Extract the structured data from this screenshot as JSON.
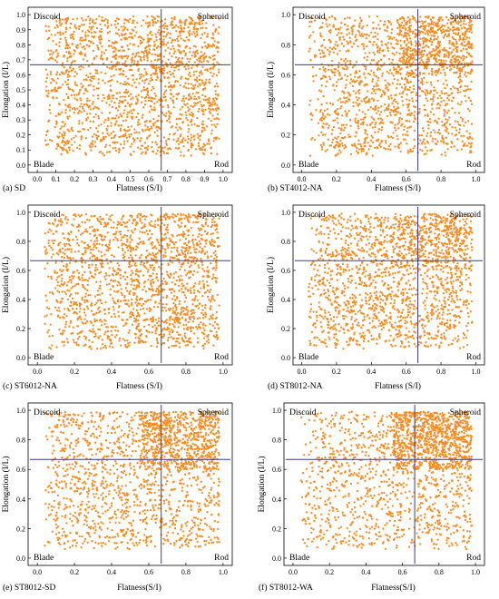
{
  "figure": {
    "marker_color": "#F98B1E",
    "line_color": "#3A3A8C",
    "panels": [
      {
        "caption_letter": "(a)",
        "caption_name": "SD",
        "chart_data": {
          "type": "scatter",
          "xlabel": "Flatness (S/I)",
          "ylabel": "Elongation (I/L)",
          "xlim": [
            0.0,
            1.0
          ],
          "ylim": [
            0.0,
            1.0
          ],
          "xticks": [
            "0.0",
            "0.1",
            "0.2",
            "0.3",
            "0.4",
            "0.5",
            "0.6",
            "0.7",
            "0.8",
            "0.9",
            "1.0"
          ],
          "yticks": [
            "0.0",
            "0.1",
            "0.2",
            "0.3",
            "0.4",
            "0.5",
            "0.6",
            "0.7",
            "0.8",
            "0.9",
            "1.0"
          ],
          "divider_x": 0.667,
          "divider_y": 0.667,
          "quadrant_labels": {
            "top_left": "Discoid",
            "top_right": "Spheroid",
            "bottom_left": "Blade",
            "bottom_right": "Rod"
          },
          "point_density": {
            "left": 0.3,
            "right": 0.3,
            "top_right_boost": 0.05,
            "bottom_right_boost": 0.0
          }
        }
      },
      {
        "caption_letter": "(b)",
        "caption_name": "ST4012-NA",
        "chart_data": {
          "type": "scatter",
          "xlabel": "Flatness (S/I)",
          "ylabel": "Elongation (I/L)",
          "xlim": [
            0.0,
            1.0
          ],
          "ylim": [
            0.0,
            1.0
          ],
          "xticks": [
            "0.0",
            "0.2",
            "0.4",
            "0.6",
            "0.8",
            "1.0"
          ],
          "yticks": [
            "0.0",
            "0.2",
            "0.4",
            "0.6",
            "0.8",
            "1.0"
          ],
          "divider_x": 0.667,
          "divider_y": 0.667,
          "quadrant_labels": {
            "top_left": "Discoid",
            "top_right": "Spheroid",
            "bottom_left": "Blade",
            "bottom_right": "Rod"
          },
          "point_density": {
            "left": 0.15,
            "right": 0.3,
            "top_right_boost": 0.2,
            "bottom_right_boost": 0.0
          }
        }
      },
      {
        "caption_letter": "(c)",
        "caption_name": "ST6012-NA",
        "chart_data": {
          "type": "scatter",
          "xlabel": "Flatness (S/I)",
          "ylabel": "Elongation (I/L)",
          "xlim": [
            0.0,
            1.0
          ],
          "ylim": [
            0.0,
            1.0
          ],
          "xticks": [
            "0.0",
            "0.2",
            "0.4",
            "0.6",
            "0.8",
            "1.0"
          ],
          "yticks": [
            "0.0",
            "0.2",
            "0.4",
            "0.6",
            "0.8",
            "1.0"
          ],
          "divider_x": 0.667,
          "divider_y": 0.667,
          "quadrant_labels": {
            "top_left": "Discoid",
            "top_right": "Spheroid",
            "bottom_left": "Blade",
            "bottom_right": "Rod"
          },
          "point_density": {
            "left": 0.25,
            "right": 0.28,
            "top_right_boost": 0.05,
            "bottom_right_boost": 0.05
          }
        }
      },
      {
        "caption_letter": "(d)",
        "caption_name": "ST8012-NA",
        "chart_data": {
          "type": "scatter",
          "xlabel": "Flatness (S/I)",
          "ylabel": "Elongation (I/L)",
          "xlim": [
            0.0,
            1.0
          ],
          "ylim": [
            0.0,
            1.0
          ],
          "xticks": [
            "0.0",
            "0.2",
            "0.4",
            "0.6",
            "0.8",
            "1.0"
          ],
          "yticks": [
            "0.0",
            "0.2",
            "0.4",
            "0.6",
            "0.8",
            "1.0"
          ],
          "divider_x": 0.667,
          "divider_y": 0.667,
          "quadrant_labels": {
            "top_left": "Discoid",
            "top_right": "Spheroid",
            "bottom_left": "Blade",
            "bottom_right": "Rod"
          },
          "point_density": {
            "left": 0.15,
            "right": 0.28,
            "top_right_boost": 0.12,
            "bottom_right_boost": 0.0
          }
        }
      },
      {
        "caption_letter": "(e)",
        "caption_name": "ST8012-SD",
        "chart_data": {
          "type": "scatter",
          "xlabel": "Flatness(S/I)",
          "ylabel": "Elongation (I/L)",
          "xlim": [
            0.0,
            1.0
          ],
          "ylim": [
            0.0,
            1.0
          ],
          "xticks": [
            "0.0",
            "0.2",
            "0.4",
            "0.6",
            "0.8",
            "1.0"
          ],
          "yticks": [
            "0.0",
            "0.2",
            "0.4",
            "0.6",
            "0.8",
            "1.0"
          ],
          "divider_x": 0.667,
          "divider_y": 0.667,
          "quadrant_labels": {
            "top_left": "Discoid",
            "top_right": "Spheroid",
            "bottom_left": "Blade",
            "bottom_right": "Rod"
          },
          "point_density": {
            "left": 0.15,
            "right": 0.3,
            "top_right_boost": 0.3,
            "bottom_right_boost": 0.0
          }
        }
      },
      {
        "caption_letter": "(f)",
        "caption_name": "ST8012-WA",
        "chart_data": {
          "type": "scatter",
          "xlabel": "Flatness(S/I)",
          "ylabel": "Elongation (I/L)",
          "xlim": [
            0.0,
            1.0
          ],
          "ylim": [
            0.0,
            1.0
          ],
          "xticks": [
            "0.0",
            "0.2",
            "0.4",
            "0.6",
            "0.8",
            "1.0"
          ],
          "yticks": [
            "0.0",
            "0.2",
            "0.4",
            "0.6",
            "0.8",
            "1.0"
          ],
          "divider_x": 0.667,
          "divider_y": 0.667,
          "quadrant_labels": {
            "top_left": "Discoid",
            "top_right": "Spheroid",
            "bottom_left": "Blade",
            "bottom_right": "Rod"
          },
          "point_density": {
            "left": 0.15,
            "right": 0.3,
            "top_right_boost": 0.35,
            "bottom_right_boost": 0.0
          }
        }
      }
    ]
  }
}
